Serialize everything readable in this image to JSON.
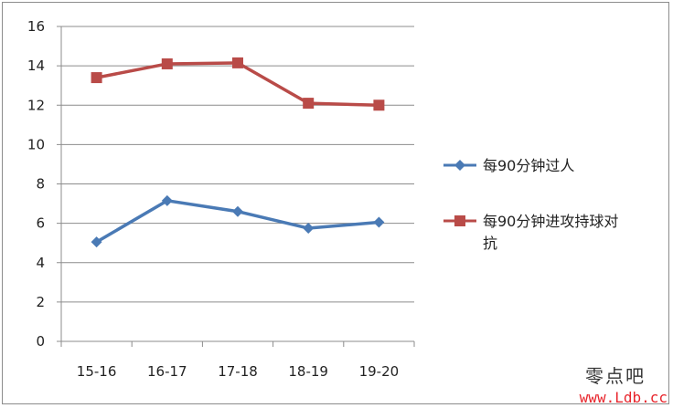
{
  "chart_data": {
    "type": "line",
    "categories": [
      "15-16",
      "16-17",
      "17-18",
      "18-19",
      "19-20"
    ],
    "series": [
      {
        "name": "每90分钟过人",
        "values": [
          5.05,
          7.15,
          6.6,
          5.75,
          6.05
        ],
        "color": "#4a7ab5",
        "marker": "diamond"
      },
      {
        "name": "每90分钟进攻持球对抗",
        "values": [
          13.4,
          14.1,
          14.15,
          12.1,
          12.0
        ],
        "color": "#b94b48",
        "marker": "square"
      }
    ],
    "yticks": [
      "0",
      "2",
      "4",
      "6",
      "8",
      "10",
      "12",
      "14",
      "16"
    ],
    "ylim": [
      0,
      16
    ],
    "grid": true,
    "legend": "right"
  },
  "legend_labels": {
    "series0": "每90分钟过人",
    "series1_line1": "每90分钟进攻持球对",
    "series1_line2": "抗"
  },
  "watermark": {
    "line1": "零点吧",
    "line2": "www.Ldb.cc"
  }
}
